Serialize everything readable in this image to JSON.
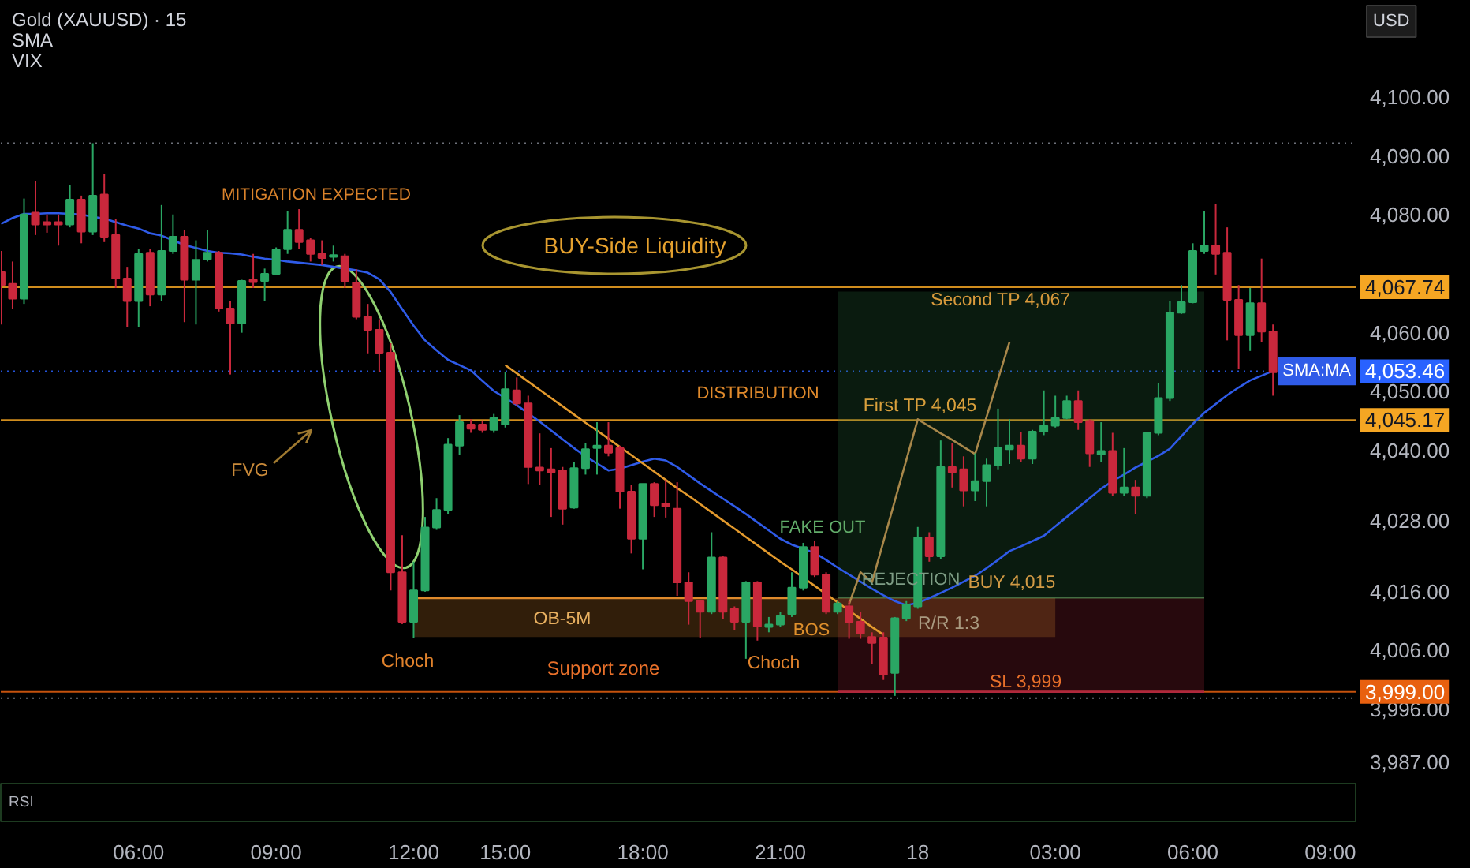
{
  "chart_data": {
    "type": "candlestick",
    "title": "Gold (XAUUSD) · 15",
    "ylabel": "USD",
    "categories": [
      null,
      null,
      null,
      null,
      null,
      null,
      null,
      null,
      null,
      null,
      null,
      null,
      "06:00",
      null,
      null,
      null,
      null,
      null,
      null,
      null,
      null,
      null,
      null,
      null,
      "09:00",
      null,
      null,
      null,
      null,
      null,
      null,
      null,
      null,
      null,
      null,
      null,
      "12:00",
      null,
      null,
      null,
      null,
      null,
      null,
      null,
      "15:00",
      null,
      null,
      null,
      null,
      null,
      null,
      null,
      null,
      null,
      null,
      null,
      "18:00",
      null,
      null,
      null,
      null,
      null,
      null,
      null,
      null,
      null,
      null,
      null,
      "21:00",
      null,
      null,
      null,
      null,
      null,
      null,
      null,
      null,
      null,
      null,
      null,
      "18",
      null,
      null,
      null,
      null,
      null,
      null,
      null,
      null,
      null,
      null,
      null,
      "03:00",
      null,
      null,
      null,
      null,
      null,
      null,
      null,
      null,
      null,
      null,
      null,
      "06:00",
      null,
      null,
      null,
      null,
      null,
      null,
      null,
      null,
      null,
      null,
      null,
      "09:00"
    ],
    "ohlc": [
      [
        4070.3,
        4073.9,
        4061.4,
        4068.1
      ],
      [
        4068.3,
        4072.1,
        4064.1,
        4065.8
      ],
      [
        4065.8,
        4082.8,
        4064.9,
        4080.1
      ],
      [
        4080.4,
        4085.8,
        4076.6,
        4078.4
      ],
      [
        4078.8,
        4080.1,
        4077.0,
        4078.4
      ],
      [
        4078.8,
        4080.1,
        4074.8,
        4078.4
      ],
      [
        4078.4,
        4085.1,
        4077.9,
        4082.6
      ],
      [
        4082.6,
        4083.3,
        4075.2,
        4077.2
      ],
      [
        4077.2,
        4092.2,
        4076.6,
        4083.3
      ],
      [
        4083.5,
        4087.0,
        4075.4,
        4076.3
      ],
      [
        4076.6,
        4079.3,
        4067.6,
        4069.2
      ],
      [
        4069.2,
        4071.2,
        4060.9,
        4065.4
      ],
      [
        4065.4,
        4074.3,
        4060.9,
        4073.4
      ],
      [
        4073.6,
        4074.3,
        4064.5,
        4066.5
      ],
      [
        4066.5,
        4081.7,
        4065.4,
        4073.9
      ],
      [
        4073.9,
        4080.1,
        4073.4,
        4076.3
      ],
      [
        4076.3,
        4077.5,
        4061.8,
        4069.0
      ],
      [
        4069.0,
        4075.7,
        4061.4,
        4072.4
      ],
      [
        4072.5,
        4077.5,
        4072.1,
        4073.6
      ],
      [
        4073.6,
        4073.9,
        4063.6,
        4064.1
      ],
      [
        4064.1,
        4065.4,
        4052.9,
        4061.6
      ],
      [
        4061.6,
        4069.0,
        4060.0,
        4068.8
      ],
      [
        4069.0,
        4073.4,
        4067.6,
        4068.6
      ],
      [
        4068.8,
        4070.9,
        4065.4,
        4070.0
      ],
      [
        4070.0,
        4074.5,
        4069.9,
        4074.1
      ],
      [
        4074.2,
        4080.6,
        4073.4,
        4077.5
      ],
      [
        4077.5,
        4081.0,
        4074.3,
        4075.4
      ],
      [
        4075.7,
        4076.1,
        4072.1,
        4073.4
      ],
      [
        4073.4,
        4075.7,
        4071.5,
        4072.7
      ],
      [
        4072.9,
        4074.8,
        4072.1,
        4073.2
      ],
      [
        4073.0,
        4073.4,
        4067.6,
        4068.8
      ],
      [
        4068.5,
        4070.8,
        4062.3,
        4062.7
      ],
      [
        4062.7,
        4064.9,
        4056.5,
        4060.5
      ],
      [
        4060.5,
        4062.3,
        4053.3,
        4056.6
      ],
      [
        4056.6,
        4058.2,
        4016.2,
        4019.3
      ],
      [
        4019.3,
        4025.6,
        4010.5,
        4010.9
      ],
      [
        4010.9,
        4021.1,
        4008.2,
        4016.2
      ],
      [
        4016.2,
        4028.7,
        4016.0,
        4026.9
      ],
      [
        4026.9,
        4031.9,
        4026.5,
        4029.9
      ],
      [
        4029.9,
        4042.1,
        4029.2,
        4041.0
      ],
      [
        4040.8,
        4046.0,
        4039.2,
        4044.8
      ],
      [
        4044.4,
        4045.3,
        4043.0,
        4043.7
      ],
      [
        4044.4,
        4045.1,
        4043.0,
        4043.5
      ],
      [
        4043.5,
        4046.2,
        4043.0,
        4045.5
      ],
      [
        4044.4,
        4053.3,
        4043.9,
        4050.4
      ],
      [
        4050.2,
        4052.4,
        4047.5,
        4048.0
      ],
      [
        4048.0,
        4049.3,
        4034.3,
        4037.2
      ],
      [
        4037.1,
        4042.9,
        4034.1,
        4036.6
      ],
      [
        4036.8,
        4040.4,
        4028.7,
        4036.3
      ],
      [
        4036.6,
        4037.2,
        4027.4,
        4030.1
      ],
      [
        4030.3,
        4038.1,
        4030.1,
        4037.0
      ],
      [
        4037.0,
        4041.3,
        4035.9,
        4040.2
      ],
      [
        4040.4,
        4044.8,
        4035.9,
        4040.8
      ],
      [
        4040.8,
        4044.8,
        4039.0,
        4039.6
      ],
      [
        4040.4,
        4040.8,
        4030.1,
        4033.0
      ],
      [
        4033.0,
        4034.1,
        4022.5,
        4025.0
      ],
      [
        4025.0,
        4034.3,
        4019.8,
        4034.3
      ],
      [
        4034.3,
        4034.6,
        4028.7,
        4030.7
      ],
      [
        4031.0,
        4035.0,
        4028.6,
        4030.5
      ],
      [
        4030.1,
        4034.6,
        4015.3,
        4017.6
      ],
      [
        4017.6,
        4019.3,
        4010.4,
        4014.4
      ],
      [
        4014.4,
        4014.6,
        4008.2,
        4012.6
      ],
      [
        4012.6,
        4026.1,
        4012.2,
        4021.8
      ],
      [
        4021.8,
        4022.0,
        4011.3,
        4012.6
      ],
      [
        4013.1,
        4013.5,
        4009.5,
        4010.9
      ],
      [
        4010.9,
        4017.8,
        4004.6,
        4017.6
      ],
      [
        4017.6,
        4017.8,
        4007.7,
        4010.1
      ],
      [
        4010.0,
        4011.7,
        4009.1,
        4010.4
      ],
      [
        4010.4,
        4012.6,
        4010.0,
        4011.9
      ],
      [
        4012.2,
        4019.3,
        4011.7,
        4016.7
      ],
      [
        4016.7,
        4024.3,
        4016.2,
        4023.6
      ],
      [
        4023.6,
        4024.7,
        4018.5,
        4018.9
      ],
      [
        4018.9,
        4019.3,
        4012.2,
        4012.6
      ],
      [
        4012.6,
        4014.4,
        4012.2,
        4014.0
      ],
      [
        4013.5,
        4014.4,
        4008.0,
        4010.9
      ],
      [
        4010.9,
        4012.6,
        4008.0,
        4008.9
      ],
      [
        4008.3,
        4009.1,
        4003.7,
        4007.3
      ],
      [
        4008.2,
        4009.1,
        4001.0,
        4001.9
      ],
      [
        4002.2,
        4011.7,
        3998.3,
        4011.5
      ],
      [
        4011.5,
        4014.4,
        4011.0,
        4013.8
      ],
      [
        4013.5,
        4027.0,
        4013.1,
        4025.2
      ],
      [
        4025.2,
        4026.1,
        4021.1,
        4022.0
      ],
      [
        4022.0,
        4041.7,
        4021.6,
        4037.2
      ],
      [
        4037.2,
        4041.3,
        4033.7,
        4036.3
      ],
      [
        4036.8,
        4039.0,
        4030.5,
        4033.2
      ],
      [
        4033.2,
        4039.5,
        4031.4,
        4034.8
      ],
      [
        4034.8,
        4038.6,
        4030.5,
        4037.5
      ],
      [
        4037.5,
        4047.1,
        4036.8,
        4040.4
      ],
      [
        4040.2,
        4045.3,
        4037.7,
        4040.8
      ],
      [
        4040.8,
        4043.2,
        4038.1,
        4038.6
      ],
      [
        4038.6,
        4043.5,
        4037.7,
        4043.2
      ],
      [
        4043.2,
        4050.2,
        4042.6,
        4044.2
      ],
      [
        4044.2,
        4049.3,
        4043.9,
        4045.5
      ],
      [
        4045.5,
        4049.3,
        4045.3,
        4048.4
      ],
      [
        4048.4,
        4050.2,
        4043.5,
        4044.8
      ],
      [
        4045.0,
        4045.3,
        4037.2,
        4039.5
      ],
      [
        4039.3,
        4044.8,
        4038.1,
        4039.9
      ],
      [
        4039.9,
        4043.0,
        4032.3,
        4032.8
      ],
      [
        4032.8,
        4040.4,
        4032.3,
        4033.7
      ],
      [
        4033.7,
        4035.0,
        4029.2,
        4032.3
      ],
      [
        4032.3,
        4043.2,
        4031.9,
        4043.0
      ],
      [
        4043.0,
        4051.5,
        4042.6,
        4048.9
      ],
      [
        4048.9,
        4065.4,
        4048.4,
        4063.4
      ],
      [
        4063.4,
        4068.1,
        4063.2,
        4065.2
      ],
      [
        4065.2,
        4075.2,
        4065.0,
        4073.9
      ],
      [
        4073.9,
        4080.6,
        4073.4,
        4074.8
      ],
      [
        4074.8,
        4081.9,
        4069.9,
        4073.4
      ],
      [
        4073.6,
        4077.9,
        4058.7,
        4065.6
      ],
      [
        4065.6,
        4068.1,
        4053.8,
        4059.6
      ],
      [
        4059.6,
        4067.6,
        4056.9,
        4065.0
      ],
      [
        4065.0,
        4072.6,
        4058.4,
        4060.2
      ],
      [
        4060.2,
        4061.4,
        4049.3,
        4053.3
      ],
      null,
      null,
      null,
      null,
      null
    ],
    "colors": [
      "#c9283c",
      "#c9283c",
      "#2aa764",
      "#c9283c",
      "#c9283c",
      "#c9283c",
      "#2aa764",
      "#c9283c",
      "#2aa764",
      "#c9283c",
      "#c9283c",
      "#c9283c",
      "#2aa764",
      "#c9283c",
      "#2aa764",
      "#2aa764",
      "#c9283c",
      "#2aa764",
      "#2aa764",
      "#c9283c",
      "#c9283c",
      "#2aa764",
      "#c9283c",
      "#2aa764",
      "#2aa764",
      "#2aa764",
      "#c9283c",
      "#c9283c",
      "#c9283c",
      "#2aa764",
      "#c9283c",
      "#c9283c",
      "#c9283c",
      "#c9283c",
      "#c9283c",
      "#c9283c",
      "#2aa764",
      "#2aa764",
      "#2aa764",
      "#2aa764",
      "#2aa764",
      "#c9283c",
      "#c9283c",
      "#2aa764",
      "#2aa764",
      "#c9283c",
      "#c9283c",
      "#c9283c",
      "#c9283c",
      "#c9283c",
      "#2aa764",
      "#2aa764",
      "#2aa764",
      "#c9283c",
      "#c9283c",
      "#c9283c",
      "#2aa764",
      "#c9283c",
      "#c9283c",
      "#c9283c",
      "#c9283c",
      "#c9283c",
      "#2aa764",
      "#c9283c",
      "#c9283c",
      "#2aa764",
      "#c9283c",
      "#2aa764",
      "#2aa764",
      "#2aa764",
      "#2aa764",
      "#c9283c",
      "#c9283c",
      "#2aa764",
      "#c9283c",
      "#c9283c",
      "#c9283c",
      "#c9283c",
      "#2aa764",
      "#2aa764",
      "#2aa764",
      "#c9283c",
      "#2aa764",
      "#c9283c",
      "#c9283c",
      "#2aa764",
      "#2aa764",
      "#2aa764",
      "#2aa764",
      "#c9283c",
      "#2aa764",
      "#2aa764",
      "#2aa764",
      "#2aa764",
      "#c9283c",
      "#c9283c",
      "#2aa764",
      "#c9283c",
      "#2aa764",
      "#c9283c",
      "#2aa764",
      "#2aa764",
      "#2aa764",
      "#2aa764",
      "#2aa764",
      "#2aa764",
      "#c9283c",
      "#c9283c",
      "#c9283c",
      "#2aa764",
      "#c9283c",
      "#c9283c",
      null,
      null,
      null,
      null,
      null
    ],
    "series": [
      {
        "type": "line",
        "color": "#2f7d45",
        "values": [
          null,
          null,
          null,
          null,
          null,
          null,
          null,
          null,
          null,
          null,
          null,
          null,
          null,
          null,
          null,
          null,
          null,
          null,
          null,
          null,
          null,
          null,
          null,
          null,
          null,
          null,
          null,
          null,
          null,
          null,
          null,
          null,
          null,
          null,
          null,
          null,
          null,
          null,
          null,
          null,
          null,
          null,
          null,
          null,
          null,
          null,
          null,
          null,
          null,
          null,
          null,
          null,
          null,
          null,
          null,
          null,
          null,
          null,
          null,
          null,
          null,
          null,
          null,
          null,
          null,
          null,
          null,
          null,
          null,
          null,
          null,
          null,
          null,
          4015,
          4015,
          4015,
          4015,
          4015,
          4015,
          4015,
          4015,
          4015,
          4015,
          4015,
          4015,
          4015,
          4015,
          4015,
          4015,
          4015,
          4015,
          4015,
          4015,
          4015,
          4015,
          4015,
          4015,
          4015,
          4015,
          4015,
          4015,
          4015,
          4015,
          4015,
          4015,
          4015,
          null,
          null,
          null,
          null,
          null,
          null,
          null,
          null,
          null,
          null,
          null
        ],
        "lower": [
          null,
          null,
          null,
          null,
          null,
          null,
          null,
          null,
          null,
          null,
          null,
          null,
          null,
          null,
          null,
          null,
          null,
          null,
          null,
          null,
          null,
          null,
          null,
          null,
          null,
          null,
          null,
          null,
          null,
          null,
          null,
          null,
          null,
          null,
          null,
          null,
          null,
          null,
          null,
          null,
          null,
          null,
          null,
          null,
          null,
          null,
          null,
          null,
          null,
          null,
          null,
          null,
          null,
          null,
          null,
          null,
          null,
          null,
          null,
          null,
          null,
          null,
          null,
          null,
          null,
          null,
          null,
          null,
          null,
          null,
          null,
          null,
          null,
          4015,
          4015,
          4015,
          4015,
          4015,
          4015,
          4015,
          4015,
          4015,
          4015,
          4015,
          4015,
          4015,
          4015,
          4015,
          4015,
          4015,
          4015,
          4015,
          4015,
          4015,
          4015,
          4015,
          4015,
          4015,
          4015,
          4015,
          4015,
          4015,
          4015,
          4015,
          4015,
          4015,
          null,
          null,
          null,
          null,
          null,
          null,
          null,
          null,
          null,
          null,
          null
        ],
        "upper": [
          null,
          null,
          null,
          null,
          null,
          null,
          null,
          null,
          null,
          null,
          null,
          null,
          null,
          null,
          null,
          null,
          null,
          null,
          null,
          null,
          null,
          null,
          null,
          null,
          null,
          null,
          null,
          null,
          null,
          null,
          null,
          null,
          null,
          null,
          null,
          null,
          null,
          null,
          null,
          null,
          null,
          null,
          null,
          null,
          null,
          null,
          null,
          null,
          null,
          null,
          null,
          null,
          null,
          null,
          null,
          null,
          null,
          null,
          null,
          null,
          null,
          null,
          null,
          null,
          null,
          null,
          null,
          null,
          null,
          null,
          null,
          null,
          null,
          4067,
          4067,
          4067,
          4067,
          4067,
          4067,
          4067,
          4067,
          4067,
          4067,
          4067,
          4067,
          4067,
          4067,
          4067,
          4067,
          4067,
          4067,
          4067,
          4067,
          4067,
          4067,
          4067,
          4067,
          4067,
          4067,
          4067,
          4067,
          4067,
          4067,
          4067,
          4067,
          4067,
          null,
          null,
          null,
          null,
          null,
          null,
          null,
          null,
          null,
          null,
          null
        ]
      },
      {
        "type": "line",
        "color": "#b0283c",
        "values": [
          null,
          null,
          null,
          null,
          null,
          null,
          null,
          null,
          null,
          null,
          null,
          null,
          null,
          null,
          null,
          null,
          null,
          null,
          null,
          null,
          null,
          null,
          null,
          null,
          null,
          null,
          null,
          null,
          null,
          null,
          null,
          null,
          null,
          null,
          null,
          null,
          null,
          null,
          null,
          null,
          null,
          null,
          null,
          null,
          null,
          null,
          null,
          null,
          null,
          null,
          null,
          null,
          null,
          null,
          null,
          null,
          null,
          null,
          null,
          null,
          null,
          null,
          null,
          null,
          null,
          null,
          null,
          null,
          null,
          null,
          null,
          null,
          null,
          3999,
          3999,
          3999,
          3999,
          3999,
          3999,
          3999,
          3999,
          3999,
          3999,
          3999,
          3999,
          3999,
          3999,
          3999,
          3999,
          3999,
          3999,
          3999,
          3999,
          3999,
          3999,
          3999,
          3999,
          3999,
          3999,
          3999,
          3999,
          3999,
          3999,
          3999,
          3999,
          3999,
          null,
          null,
          null,
          null,
          null,
          null,
          null,
          null,
          null,
          null,
          null
        ],
        "lower": [
          null,
          null,
          null,
          null,
          null,
          null,
          null,
          null,
          null,
          null,
          null,
          null,
          null,
          null,
          null,
          null,
          null,
          null,
          null,
          null,
          null,
          null,
          null,
          null,
          null,
          null,
          null,
          null,
          null,
          null,
          null,
          null,
          null,
          null,
          null,
          null,
          null,
          null,
          null,
          null,
          null,
          null,
          null,
          null,
          null,
          null,
          null,
          null,
          null,
          null,
          null,
          null,
          null,
          null,
          null,
          null,
          null,
          null,
          null,
          null,
          null,
          null,
          null,
          null,
          null,
          null,
          null,
          null,
          null,
          null,
          null,
          null,
          null,
          3999,
          3999,
          3999,
          3999,
          3999,
          3999,
          3999,
          3999,
          3999,
          3999,
          3999,
          3999,
          3999,
          3999,
          3999,
          3999,
          3999,
          3999,
          3999,
          3999,
          3999,
          3999,
          3999,
          3999,
          3999,
          3999,
          3999,
          3999,
          3999,
          3999,
          3999,
          3999,
          3999,
          null,
          null,
          null,
          null,
          null,
          null,
          null,
          null,
          null,
          null,
          null
        ],
        "upper": [
          null,
          null,
          null,
          null,
          null,
          null,
          null,
          null,
          null,
          null,
          null,
          null,
          null,
          null,
          null,
          null,
          null,
          null,
          null,
          null,
          null,
          null,
          null,
          null,
          null,
          null,
          null,
          null,
          null,
          null,
          null,
          null,
          null,
          null,
          null,
          null,
          null,
          null,
          null,
          null,
          null,
          null,
          null,
          null,
          null,
          null,
          null,
          null,
          null,
          null,
          null,
          null,
          null,
          null,
          null,
          null,
          null,
          null,
          null,
          null,
          null,
          null,
          null,
          null,
          null,
          null,
          null,
          null,
          null,
          null,
          null,
          null,
          null,
          4015,
          4015,
          4015,
          4015,
          4015,
          4015,
          4015,
          4015,
          4015,
          4015,
          4015,
          4015,
          4015,
          4015,
          4015,
          4015,
          4015,
          4015,
          4015,
          4015,
          4015,
          4015,
          4015,
          4015,
          4015,
          4015,
          4015,
          4015,
          4015,
          4015,
          4015,
          4015,
          4015,
          null,
          null,
          null,
          null,
          null,
          null,
          null,
          null,
          null,
          null,
          null
        ]
      },
      {
        "type": "line",
        "color": "#e08a2c",
        "values": [
          null,
          null,
          null,
          null,
          null,
          null,
          null,
          null,
          null,
          null,
          null,
          null,
          null,
          null,
          null,
          null,
          null,
          null,
          null,
          null,
          null,
          null,
          null,
          null,
          null,
          null,
          null,
          null,
          null,
          null,
          null,
          null,
          null,
          null,
          null,
          null,
          4014.9,
          4014.9,
          4014.9,
          4014.9,
          4014.9,
          4014.9,
          4014.9,
          4014.9,
          4014.9,
          4014.9,
          4014.9,
          4014.9,
          4014.9,
          4014.9,
          4014.9,
          4014.9,
          4014.9,
          4014.9,
          4014.9,
          4014.9,
          4014.9,
          4014.9,
          4014.9,
          4014.9,
          4014.9,
          4014.9,
          4014.9,
          4014.9,
          4014.9,
          4014.9,
          4014.9,
          4014.9,
          4014.9,
          4014.9,
          4014.9,
          4014.9,
          4014.9,
          null,
          null,
          null,
          null,
          null,
          null,
          null,
          null,
          null,
          null,
          null,
          null,
          null,
          null,
          null,
          null,
          null,
          null,
          null,
          null,
          null,
          null,
          null,
          null,
          null,
          null,
          null,
          null,
          null,
          null,
          null,
          null,
          null,
          null,
          null,
          null,
          null,
          null,
          null,
          null,
          null,
          null,
          null,
          null
        ],
        "lower": [
          null,
          null,
          null,
          null,
          null,
          null,
          null,
          null,
          null,
          null,
          null,
          null,
          null,
          null,
          null,
          null,
          null,
          null,
          null,
          null,
          null,
          null,
          null,
          null,
          null,
          null,
          null,
          null,
          null,
          null,
          null,
          null,
          null,
          null,
          null,
          null,
          4008.3,
          4008.3,
          4008.3,
          4008.3,
          4008.3,
          4008.3,
          4008.3,
          4008.3,
          4008.3,
          4008.3,
          4008.3,
          4008.3,
          4008.3,
          4008.3,
          4008.3,
          4008.3,
          4008.3,
          4008.3,
          4008.3,
          4008.3,
          4008.3,
          4008.3,
          4008.3,
          4008.3,
          4008.3,
          4008.3,
          4008.3,
          4008.3,
          4008.3,
          4008.3,
          4008.3,
          4008.3,
          4008.3,
          4008.3,
          4008.3,
          4008.3,
          4008.3,
          4008.3,
          4008.3,
          4008.3,
          4008.3,
          4008.3,
          4008.3,
          4008.3,
          4008.3,
          4008.3,
          4008.3,
          4008.3,
          4008.3,
          4008.3,
          4008.3,
          4008.3,
          4008.3,
          4008.3,
          4008.3,
          4008.3,
          4008.3,
          null,
          null,
          null,
          null,
          null,
          null,
          null,
          null,
          null,
          null,
          null,
          null,
          null,
          null,
          null,
          null,
          null,
          null,
          null,
          null,
          null,
          null,
          null,
          null
        ],
        "upper": [
          null,
          null,
          null,
          null,
          null,
          null,
          null,
          null,
          null,
          null,
          null,
          null,
          null,
          null,
          null,
          null,
          null,
          null,
          null,
          null,
          null,
          null,
          null,
          null,
          null,
          null,
          null,
          null,
          null,
          null,
          null,
          null,
          null,
          null,
          null,
          null,
          4014.9,
          4014.9,
          4014.9,
          4014.9,
          4014.9,
          4014.9,
          4014.9,
          4014.9,
          4014.9,
          4014.9,
          4014.9,
          4014.9,
          4014.9,
          4014.9,
          4014.9,
          4014.9,
          4014.9,
          4014.9,
          4014.9,
          4014.9,
          4014.9,
          4014.9,
          4014.9,
          4014.9,
          4014.9,
          4014.9,
          4014.9,
          4014.9,
          4014.9,
          4014.9,
          4014.9,
          4014.9,
          4014.9,
          4014.9,
          4014.9,
          4014.9,
          4014.9,
          4014.9,
          4014.9,
          4014.9,
          4014.9,
          4014.9,
          4014.9,
          4014.9,
          4014.9,
          4014.9,
          4014.9,
          4014.9,
          4014.9,
          4014.9,
          4014.9,
          4014.9,
          4014.9,
          4014.9,
          4014.9,
          4014.9,
          4014.9,
          null,
          null,
          null,
          null,
          null,
          null,
          null,
          null,
          null,
          null,
          null,
          null,
          null,
          null,
          null,
          null,
          null,
          null,
          null,
          null,
          null,
          null,
          null,
          null
        ]
      },
      {
        "type": "line",
        "name": "SMA:MA",
        "color": "#2f5be8",
        "values": [
          4078.5,
          4079.5,
          4080.2,
          4080.2,
          4080.3,
          4080.3,
          4080.2,
          4080.1,
          4079.7,
          4079.4,
          4078.8,
          4078.2,
          4077.7,
          4076.9,
          4076.5,
          4075.7,
          4074.9,
          4074.4,
          4073.9,
          4073.6,
          4073.5,
          4073.3,
          4072.9,
          4072.6,
          4072.4,
          4072.1,
          4071.9,
          4071.7,
          4071.5,
          4071.2,
          4070.9,
          4070.6,
          4070.2,
          4069.1,
          4066.9,
          4064.0,
          4061.2,
          4058.7,
          4057.0,
          4055.4,
          4054.5,
          4053.6,
          4051.8,
          4050.1,
          4048.9,
          4047.7,
          4046.3,
          4044.9,
          4043.4,
          4041.9,
          4040.4,
          4039.0,
          4037.8,
          4036.6,
          4036.9,
          4037.5,
          4038.1,
          4038.6,
          4038.3,
          4037.2,
          4035.8,
          4034.4,
          4033.1,
          4031.8,
          4030.5,
          4029.2,
          4027.8,
          4026.4,
          4025.0,
          4024.0,
          4023.3,
          4022.6,
          4021.4,
          4020.1,
          4018.9,
          4017.7,
          4016.5,
          4015.4,
          4014.4,
          4013.7,
          4014.1,
          4014.9,
          4015.8,
          4016.7,
          4017.7,
          4018.7,
          4020.0,
          4021.4,
          4022.9,
          4023.7,
          4024.6,
          4025.5,
          4027.1,
          4028.7,
          4030.3,
          4031.9,
          4033.5,
          4034.8,
          4035.9,
          4037.1,
          4038.1,
          4039.1,
          4040.3,
          4042.4,
          4044.5,
          4046.4,
          4047.9,
          4049.4,
          4050.7,
          4051.9,
          4052.7,
          4053.5,
          null,
          null,
          null,
          null,
          null
        ]
      },
      {
        "type": "line",
        "color": "#e39a2d",
        "values": [
          null,
          null,
          null,
          null,
          null,
          null,
          null,
          null,
          null,
          null,
          null,
          null,
          null,
          null,
          null,
          null,
          null,
          null,
          null,
          null,
          null,
          null,
          null,
          null,
          null,
          null,
          null,
          null,
          null,
          null,
          null,
          null,
          null,
          null,
          null,
          null,
          null,
          null,
          null,
          null,
          null,
          null,
          null,
          null,
          4054.5,
          4053.1,
          4051.7,
          4050.3,
          4048.9,
          4047.5,
          4046.1,
          4044.7,
          4043.4,
          4042.0,
          4040.6,
          4039.2,
          4037.8,
          4036.4,
          4035.0,
          4033.6,
          4032.3,
          4030.9,
          4029.5,
          4028.1,
          4026.7,
          4025.3,
          4023.9,
          4022.5,
          4021.1,
          4019.8,
          4018.4,
          4017.0,
          4015.6,
          4014.2,
          4012.8,
          4011.4,
          4010.0,
          4008.7,
          null,
          null,
          null,
          null,
          null,
          null,
          null,
          null,
          null,
          null,
          null,
          null,
          null,
          null,
          null,
          null,
          null,
          null,
          null,
          null,
          null,
          null,
          null,
          null,
          null,
          null,
          null,
          null,
          null,
          null,
          null,
          null,
          null,
          null,
          null,
          null,
          null,
          null,
          null
        ]
      },
      {
        "type": "line",
        "color": "#a8874a",
        "values": [
          null,
          null,
          null,
          null,
          null,
          null,
          null,
          null,
          null,
          null,
          null,
          null,
          null,
          null,
          null,
          null,
          null,
          null,
          null,
          null,
          null,
          null,
          null,
          null,
          null,
          null,
          null,
          null,
          null,
          null,
          null,
          null,
          null,
          null,
          null,
          null,
          null,
          null,
          null,
          null,
          null,
          null,
          null,
          null,
          null,
          null,
          null,
          null,
          null,
          null,
          null,
          null,
          null,
          null,
          null,
          null,
          null,
          null,
          null,
          null,
          null,
          null,
          null,
          null,
          null,
          null,
          null,
          null,
          null,
          null,
          null,
          null,
          null,
          null,
          4013.9,
          4019.3,
          4017.6,
          4024.5,
          4031.5,
          4038.4,
          4045.3,
          4044.1,
          4042.9,
          4041.8,
          4040.6,
          4039.4,
          4045.7,
          4052.1,
          4058.4,
          null,
          null,
          null,
          null,
          null,
          null,
          null,
          null,
          null,
          null,
          null,
          null,
          null,
          null,
          null,
          null,
          null,
          null,
          null,
          null,
          null,
          null,
          null,
          null,
          null,
          null,
          null,
          null
        ]
      }
    ],
    "ref_lines": [
      {
        "axis": "y",
        "value": 4092.2,
        "line_style": "dotted"
      },
      {
        "axis": "y",
        "value": 4067.74,
        "label": "4,067.74",
        "color": "#f5a623"
      },
      {
        "axis": "y",
        "value": 4053.46,
        "label": "4,053.46",
        "color": "#2962ff",
        "line_style": "dotted"
      },
      {
        "axis": "y",
        "value": 4045.17,
        "label": "4,045.17",
        "color": "#f5a623"
      },
      {
        "axis": "y",
        "value": 3999,
        "label": "3,999.00",
        "color": "#e8600f"
      },
      {
        "axis": "y",
        "value": 3997.9,
        "line_style": "dotted"
      }
    ],
    "annotations": [
      "SMA",
      "VIX",
      "RSI",
      "MITIGATION EXPECTED",
      "BUY-Side Liquidity",
      "FVG",
      "DISTRIBUTION",
      "Second TP 4,067",
      "First TP 4,045",
      "FAKE OUT",
      "REJECTION",
      "BUY 4,015",
      "OB-5M",
      "R/R 1:3",
      "BOS",
      "Choch",
      "Support zone",
      "Choch",
      "SL 3,999"
    ],
    "ylim": [
      3983.4,
      4116.4
    ],
    "yticks": [
      {
        "value": 3987,
        "label": "3,987.00"
      },
      {
        "value": 3996,
        "label": "3,996.00"
      },
      {
        "value": 4006,
        "label": "4,006.00"
      },
      {
        "value": 4016,
        "label": "4,016.00"
      },
      {
        "value": 4028,
        "label": "4,028.00"
      },
      {
        "value": 4040,
        "label": "4,040.00"
      },
      {
        "value": 4050,
        "label": "4,050.00"
      },
      {
        "value": 4060,
        "label": "4,060.00"
      },
      {
        "value": 4080,
        "label": "4,080.00"
      },
      {
        "value": 4090,
        "label": "4,090.00"
      },
      {
        "value": 4100,
        "label": "4,100.00"
      }
    ],
    "grid": false
  }
}
